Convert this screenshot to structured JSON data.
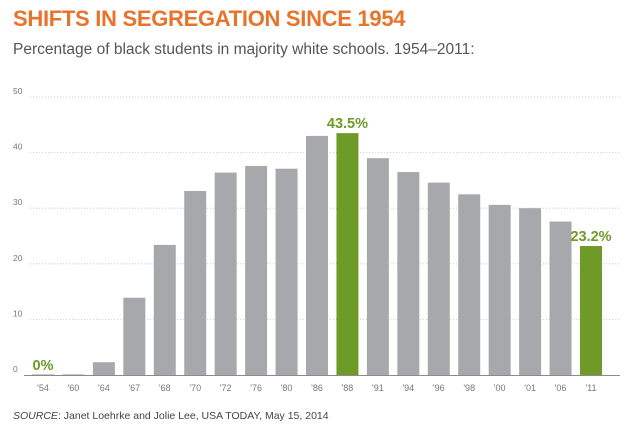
{
  "colors": {
    "title": "#e8732b",
    "bar": "#a7a8ab",
    "highlight": "#6e9a27",
    "grid": "#c8c8c8",
    "axis": "#8a8a8a"
  },
  "chart_data": {
    "type": "bar",
    "title": "SHIFTS IN SEGREGATION SINCE 1954",
    "subtitle": "Percentage of black students in majority white schools. 1954–2011:",
    "xlabel": "",
    "ylabel": "",
    "ylim": [
      0,
      50
    ],
    "yticks": [
      0,
      10,
      20,
      30,
      40,
      50
    ],
    "grid": true,
    "categories": [
      "'54",
      "'60",
      "'64",
      "'67",
      "'68",
      "'70",
      "'72",
      "'76",
      "'80",
      "'86",
      "'88",
      "'91",
      "'94",
      "'96",
      "'98",
      "'00",
      "'01",
      "'06",
      "'11"
    ],
    "values": [
      0,
      0.1,
      2.3,
      13.9,
      23.4,
      33.1,
      36.4,
      37.6,
      37.1,
      43.0,
      43.5,
      39.0,
      36.5,
      34.6,
      32.5,
      30.6,
      30.0,
      27.6,
      23.2
    ],
    "highlighted": [
      false,
      false,
      false,
      false,
      false,
      false,
      false,
      false,
      false,
      false,
      true,
      false,
      false,
      false,
      false,
      false,
      false,
      false,
      true
    ],
    "data_labels": [
      {
        "index": 0,
        "text": "0%"
      },
      {
        "index": 10,
        "text": "43.5%"
      },
      {
        "index": 18,
        "text": "23.2%"
      }
    ]
  },
  "source": {
    "label": "SOURCE",
    "text": ": Janet Loehrke and Jolie Lee, USA TODAY, May 15, 2014"
  }
}
